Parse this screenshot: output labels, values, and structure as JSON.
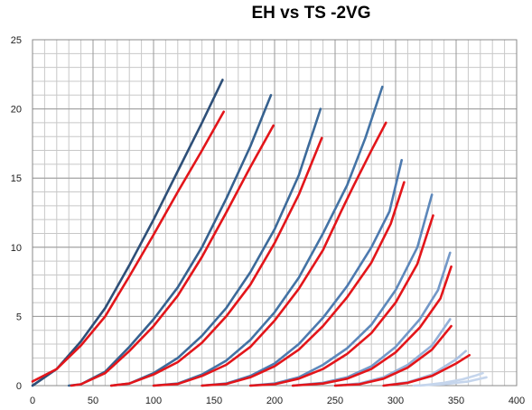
{
  "chart_data": {
    "type": "line",
    "title": "EH vs TS -2VG",
    "xlabel": "",
    "ylabel": "",
    "xlim": [
      0,
      400
    ],
    "ylim": [
      0,
      25
    ],
    "x_ticks": [
      "0",
      "50",
      "100",
      "150",
      "200",
      "250",
      "300",
      "350",
      "400"
    ],
    "y_ticks": [
      "0",
      "5",
      "10",
      "15",
      "20",
      "25"
    ],
    "x_tick_values": [
      0,
      50,
      100,
      150,
      200,
      250,
      300,
      350,
      400
    ],
    "y_tick_values": [
      0,
      5,
      10,
      15,
      20,
      25
    ],
    "grid": true,
    "legend": "none",
    "series": [
      {
        "color": "#2e4f78",
        "x": [
          0,
          20,
          40,
          60,
          80,
          100,
          120,
          140,
          157
        ],
        "y": [
          0,
          1.2,
          3.2,
          5.6,
          8.7,
          12.0,
          15.5,
          19.0,
          22.1
        ]
      },
      {
        "color": "#e3151a",
        "x": [
          0,
          20,
          40,
          60,
          80,
          100,
          120,
          140,
          158
        ],
        "y": [
          0.3,
          1.2,
          2.9,
          5.0,
          7.9,
          10.9,
          14.0,
          17.0,
          19.8
        ]
      },
      {
        "color": "#36618f",
        "x": [
          30,
          40,
          60,
          80,
          100,
          120,
          140,
          160,
          180,
          197
        ],
        "y": [
          0,
          0.1,
          1.0,
          2.8,
          4.8,
          7.1,
          10.0,
          13.5,
          17.3,
          21.0
        ]
      },
      {
        "color": "#e3151a",
        "x": [
          32,
          40,
          60,
          80,
          100,
          120,
          140,
          160,
          180,
          199
        ],
        "y": [
          0,
          0.1,
          0.9,
          2.5,
          4.3,
          6.5,
          9.3,
          12.5,
          15.8,
          18.8
        ]
      },
      {
        "color": "#3c6a9a",
        "x": [
          65,
          80,
          100,
          120,
          140,
          160,
          180,
          200,
          220,
          238
        ],
        "y": [
          0,
          0.15,
          0.9,
          2.0,
          3.6,
          5.6,
          8.2,
          11.3,
          15.2,
          20.0
        ]
      },
      {
        "color": "#e3151a",
        "x": [
          65,
          80,
          100,
          120,
          140,
          160,
          180,
          200,
          220,
          239
        ],
        "y": [
          0,
          0.15,
          0.8,
          1.7,
          3.1,
          5.0,
          7.3,
          10.3,
          13.8,
          17.9
        ]
      },
      {
        "color": "#4373a5",
        "x": [
          100,
          120,
          140,
          160,
          180,
          200,
          220,
          240,
          260,
          275,
          289
        ],
        "y": [
          0,
          0.15,
          0.8,
          1.8,
          3.3,
          5.3,
          7.8,
          11.0,
          14.5,
          17.9,
          21.6
        ]
      },
      {
        "color": "#e3151a",
        "x": [
          100,
          120,
          140,
          160,
          180,
          200,
          220,
          240,
          255,
          265,
          280,
          292
        ],
        "y": [
          0,
          0.12,
          0.7,
          1.5,
          2.8,
          4.7,
          7.0,
          9.8,
          12.6,
          14.4,
          17.0,
          19.0
        ]
      },
      {
        "color": "#4d7ab0",
        "x": [
          140,
          160,
          180,
          200,
          220,
          240,
          260,
          280,
          295,
          305
        ],
        "y": [
          0,
          0.15,
          0.7,
          1.6,
          3.0,
          4.9,
          7.2,
          10.0,
          12.6,
          16.3
        ]
      },
      {
        "color": "#e3151a",
        "x": [
          140,
          160,
          180,
          200,
          220,
          240,
          260,
          280,
          296,
          307
        ],
        "y": [
          0,
          0.12,
          0.6,
          1.4,
          2.6,
          4.3,
          6.4,
          8.9,
          11.7,
          14.7
        ]
      },
      {
        "color": "#5d88bb",
        "x": [
          180,
          200,
          220,
          240,
          260,
          280,
          300,
          318,
          330
        ],
        "y": [
          0,
          0.15,
          0.6,
          1.5,
          2.7,
          4.4,
          6.9,
          10.0,
          13.8
        ]
      },
      {
        "color": "#e3151a",
        "x": [
          180,
          200,
          220,
          240,
          260,
          280,
          300,
          318,
          331
        ],
        "y": [
          0,
          0.1,
          0.5,
          1.2,
          2.3,
          3.8,
          6.0,
          8.8,
          12.3
        ]
      },
      {
        "color": "#7398c8",
        "x": [
          215,
          240,
          260,
          280,
          300,
          320,
          335,
          345
        ],
        "y": [
          0,
          0.2,
          0.6,
          1.4,
          2.8,
          4.8,
          6.9,
          9.6
        ]
      },
      {
        "color": "#e3151a",
        "x": [
          215,
          240,
          260,
          280,
          300,
          320,
          337,
          346
        ],
        "y": [
          0,
          0.15,
          0.5,
          1.2,
          2.4,
          4.2,
          6.3,
          8.6
        ]
      },
      {
        "color": "#93b0d8",
        "x": [
          250,
          270,
          290,
          310,
          330,
          345
        ],
        "y": [
          0,
          0.15,
          0.6,
          1.5,
          2.9,
          4.8
        ]
      },
      {
        "color": "#e3151a",
        "x": [
          250,
          270,
          290,
          310,
          330,
          346
        ],
        "y": [
          0,
          0.1,
          0.5,
          1.3,
          2.6,
          4.3
        ]
      },
      {
        "color": "#a9c0e2",
        "x": [
          290,
          310,
          330,
          350,
          358
        ],
        "y": [
          0,
          0.25,
          0.8,
          1.9,
          2.5
        ]
      },
      {
        "color": "#e3151a",
        "x": [
          290,
          310,
          330,
          350,
          361
        ],
        "y": [
          0,
          0.2,
          0.7,
          1.6,
          2.2
        ]
      },
      {
        "color": "#c5d5ec",
        "x": [
          320,
          340,
          355,
          365,
          372
        ],
        "y": [
          0,
          0.2,
          0.45,
          0.7,
          0.9
        ]
      },
      {
        "color": "#c5d5ec",
        "x": [
          315,
          340,
          360,
          375
        ],
        "y": [
          0,
          0.1,
          0.3,
          0.6
        ]
      }
    ]
  }
}
